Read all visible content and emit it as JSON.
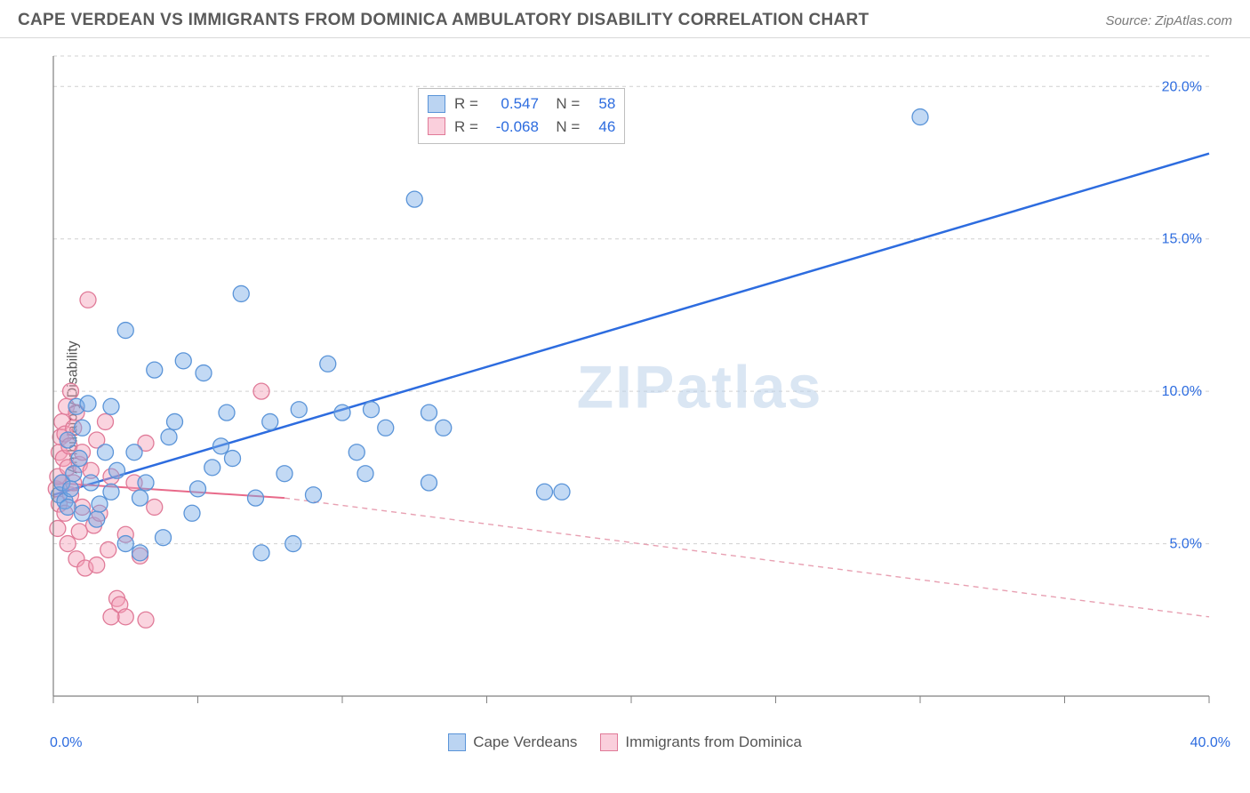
{
  "header": {
    "title": "CAPE VERDEAN VS IMMIGRANTS FROM DOMINICA AMBULATORY DISABILITY CORRELATION CHART",
    "source": "Source: ZipAtlas.com"
  },
  "chart": {
    "type": "scatter",
    "ylabel": "Ambulatory Disability",
    "watermark": "ZIPatlas",
    "background_color": "#ffffff",
    "grid_color": "#d0d0d0",
    "axis_color": "#808080",
    "xlim": [
      0,
      40
    ],
    "ylim": [
      0,
      21
    ],
    "x_ticks": [
      0,
      5,
      10,
      15,
      20,
      25,
      30,
      35,
      40
    ],
    "y_grid": [
      5,
      10,
      15,
      20
    ],
    "y_tick_labels": [
      "5.0%",
      "10.0%",
      "15.0%",
      "20.0%"
    ],
    "x_min_label": "0.0%",
    "x_max_label": "40.0%",
    "marker_radius": 9,
    "series": {
      "blue": {
        "name": "Cape Verdeans",
        "fill": "rgba(120,170,230,0.45)",
        "stroke": "#5a94d8",
        "R": "0.547",
        "N": "58",
        "trend": {
          "x1": 0,
          "y1": 6.6,
          "x2": 40,
          "y2": 17.8,
          "color": "#2d6cdf",
          "width": 2.5
        },
        "points": [
          [
            0.2,
            6.6
          ],
          [
            0.3,
            7.0
          ],
          [
            0.4,
            6.4
          ],
          [
            0.5,
            6.2
          ],
          [
            0.5,
            8.4
          ],
          [
            0.6,
            6.8
          ],
          [
            0.7,
            7.3
          ],
          [
            0.8,
            9.5
          ],
          [
            0.9,
            7.8
          ],
          [
            1.0,
            6.0
          ],
          [
            1.0,
            8.8
          ],
          [
            1.2,
            9.6
          ],
          [
            1.3,
            7.0
          ],
          [
            1.5,
            5.8
          ],
          [
            1.6,
            6.3
          ],
          [
            1.8,
            8.0
          ],
          [
            2.0,
            6.7
          ],
          [
            2.0,
            9.5
          ],
          [
            2.2,
            7.4
          ],
          [
            2.5,
            5.0
          ],
          [
            2.5,
            12.0
          ],
          [
            2.8,
            8.0
          ],
          [
            3.0,
            6.5
          ],
          [
            3.2,
            7.0
          ],
          [
            3.5,
            10.7
          ],
          [
            3.8,
            5.2
          ],
          [
            4.0,
            8.5
          ],
          [
            4.2,
            9.0
          ],
          [
            4.5,
            11.0
          ],
          [
            5.0,
            6.8
          ],
          [
            5.2,
            10.6
          ],
          [
            5.5,
            7.5
          ],
          [
            5.8,
            8.2
          ],
          [
            6.0,
            9.3
          ],
          [
            6.5,
            13.2
          ],
          [
            7.0,
            6.5
          ],
          [
            7.2,
            4.7
          ],
          [
            7.5,
            9.0
          ],
          [
            8.0,
            7.3
          ],
          [
            8.3,
            5.0
          ],
          [
            8.5,
            9.4
          ],
          [
            9.0,
            6.6
          ],
          [
            9.5,
            10.9
          ],
          [
            10.0,
            9.3
          ],
          [
            10.5,
            8.0
          ],
          [
            10.8,
            7.3
          ],
          [
            11.0,
            9.4
          ],
          [
            11.5,
            8.8
          ],
          [
            12.5,
            16.3
          ],
          [
            13.0,
            7.0
          ],
          [
            13.5,
            8.8
          ],
          [
            13.0,
            9.3
          ],
          [
            17.0,
            6.7
          ],
          [
            17.6,
            6.7
          ],
          [
            30.0,
            19.0
          ],
          [
            4.8,
            6.0
          ],
          [
            6.2,
            7.8
          ],
          [
            3.0,
            4.7
          ]
        ]
      },
      "pink": {
        "name": "Immigrants from Dominica",
        "fill": "rgba(245,160,185,0.45)",
        "stroke": "#e07a98",
        "R": "-0.068",
        "N": "46",
        "trend_solid": {
          "x1": 0,
          "y1": 7.0,
          "x2": 8,
          "y2": 6.5,
          "color": "#e86a8a",
          "width": 2
        },
        "trend_dash": {
          "x1": 8,
          "y1": 6.5,
          "x2": 40,
          "y2": 2.6,
          "color": "#e8a0b2",
          "width": 1.4
        },
        "points": [
          [
            0.1,
            6.8
          ],
          [
            0.15,
            7.2
          ],
          [
            0.2,
            8.0
          ],
          [
            0.2,
            6.3
          ],
          [
            0.25,
            8.5
          ],
          [
            0.3,
            7.0
          ],
          [
            0.3,
            9.0
          ],
          [
            0.35,
            7.8
          ],
          [
            0.4,
            8.6
          ],
          [
            0.4,
            6.0
          ],
          [
            0.45,
            9.5
          ],
          [
            0.5,
            7.5
          ],
          [
            0.5,
            5.0
          ],
          [
            0.55,
            8.2
          ],
          [
            0.6,
            10.0
          ],
          [
            0.6,
            6.6
          ],
          [
            0.7,
            7.0
          ],
          [
            0.7,
            8.8
          ],
          [
            0.8,
            9.3
          ],
          [
            0.8,
            4.5
          ],
          [
            0.9,
            7.6
          ],
          [
            0.9,
            5.4
          ],
          [
            1.0,
            8.0
          ],
          [
            1.0,
            6.2
          ],
          [
            1.1,
            4.2
          ],
          [
            1.2,
            13.0
          ],
          [
            1.3,
            7.4
          ],
          [
            1.4,
            5.6
          ],
          [
            1.5,
            8.4
          ],
          [
            1.6,
            6.0
          ],
          [
            1.8,
            9.0
          ],
          [
            1.9,
            4.8
          ],
          [
            2.0,
            7.2
          ],
          [
            2.2,
            3.2
          ],
          [
            2.3,
            3.0
          ],
          [
            2.5,
            5.3
          ],
          [
            2.5,
            2.6
          ],
          [
            2.8,
            7.0
          ],
          [
            3.0,
            4.6
          ],
          [
            3.2,
            2.5
          ],
          [
            3.5,
            6.2
          ],
          [
            3.2,
            8.3
          ],
          [
            2.0,
            2.6
          ],
          [
            1.5,
            4.3
          ],
          [
            7.2,
            10.0
          ],
          [
            0.15,
            5.5
          ]
        ]
      }
    }
  }
}
